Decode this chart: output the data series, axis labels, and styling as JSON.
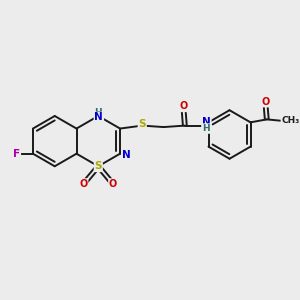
{
  "bg_color": "#ececec",
  "atom_colors": {
    "C": "#1a1a1a",
    "N": "#0000cc",
    "O": "#cc0000",
    "S": "#aaaa00",
    "F": "#aa00aa",
    "H": "#336666"
  },
  "bond_color": "#1a1a1a",
  "figure_size": [
    3.0,
    3.0
  ],
  "dpi": 100
}
